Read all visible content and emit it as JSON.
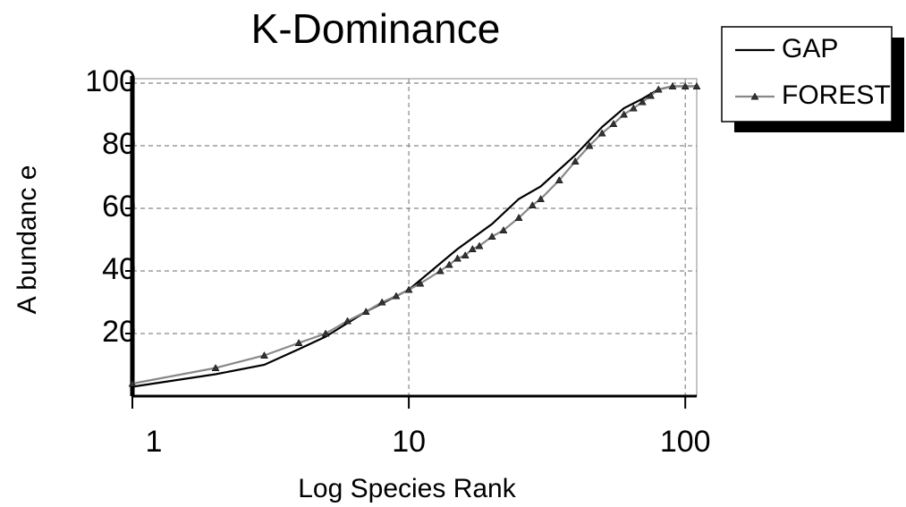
{
  "chart_data": {
    "type": "line",
    "title": "K-Dominance",
    "x_label": "Log Species Rank",
    "y_label": "A bundanc e",
    "xscale": "log",
    "grid": true,
    "xlim": [
      1,
      110
    ],
    "ylim": [
      0,
      100
    ],
    "xticks": [
      1,
      10,
      100
    ],
    "yticks": [
      20,
      40,
      60,
      80,
      100
    ],
    "series": [
      {
        "name": "GAP",
        "color": "#000000",
        "marker": false,
        "x": [
          1,
          2,
          3,
          4,
          5,
          7,
          10,
          15,
          20,
          25,
          30,
          40,
          50,
          60,
          70,
          80,
          90,
          100,
          110
        ],
        "values": [
          3,
          7,
          10,
          15,
          19,
          27,
          34,
          47,
          55,
          63,
          67,
          77,
          86,
          92,
          95,
          98,
          99,
          99,
          99
        ]
      },
      {
        "name": "FOREST",
        "color": "#888888",
        "marker": true,
        "x": [
          1,
          2,
          3,
          4,
          5,
          6,
          7,
          8,
          9,
          10,
          11,
          13,
          14,
          15,
          16,
          17,
          18,
          20,
          22,
          25,
          28,
          30,
          35,
          40,
          45,
          50,
          55,
          60,
          65,
          70,
          75,
          80,
          90,
          100,
          110
        ],
        "values": [
          4,
          9,
          13,
          17,
          20,
          24,
          27,
          30,
          32,
          34,
          36,
          40,
          42,
          44,
          45,
          47,
          48,
          51,
          53,
          57,
          61,
          63,
          69,
          75,
          80,
          84,
          87,
          90,
          92,
          94,
          96,
          98,
          99,
          99,
          99
        ]
      }
    ]
  }
}
